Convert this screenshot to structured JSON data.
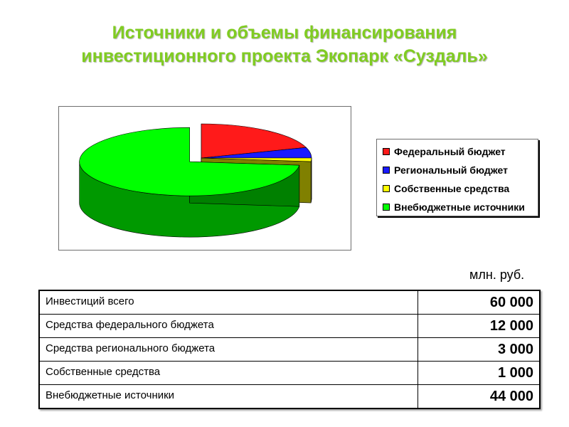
{
  "title": {
    "line1": "Источники и объемы финансирования",
    "line2": "инвестиционного проекта Экопарк «Суздаль»",
    "color": "#80cc22"
  },
  "chart_data": {
    "type": "pie",
    "categories": [
      "Федеральный бюджет",
      "Региональный бюджет",
      "Собственные средства",
      "Внебюджетные источники"
    ],
    "values": [
      12000,
      3000,
      1000,
      44000
    ],
    "colors": [
      "#ff1a1a",
      "#1a1aff",
      "#ffff00",
      "#00ff00"
    ],
    "exploded": "Внебюджетные источники",
    "legend_placement": "right",
    "three_d": true
  },
  "legend": {
    "items": [
      {
        "label": "Федеральный бюджет",
        "color": "#ff1a1a"
      },
      {
        "label": "Региональный бюджет",
        "color": "#1a1aff"
      },
      {
        "label": "Собственные средства",
        "color": "#ffff00"
      },
      {
        "label": "Внебюджетные источники",
        "color": "#00ff00"
      }
    ]
  },
  "unit": "млн. руб.",
  "table": {
    "rows": [
      {
        "label": "Инвестиций всего",
        "value": "60 000"
      },
      {
        "label": "Средства федерального бюджета",
        "value": "12 000"
      },
      {
        "label": "Средства регионального бюджета",
        "value": "3 000"
      },
      {
        "label": "Собственные средства",
        "value": "1 000"
      },
      {
        "label": "Внебюджетные источники",
        "value": "44 000"
      }
    ]
  }
}
